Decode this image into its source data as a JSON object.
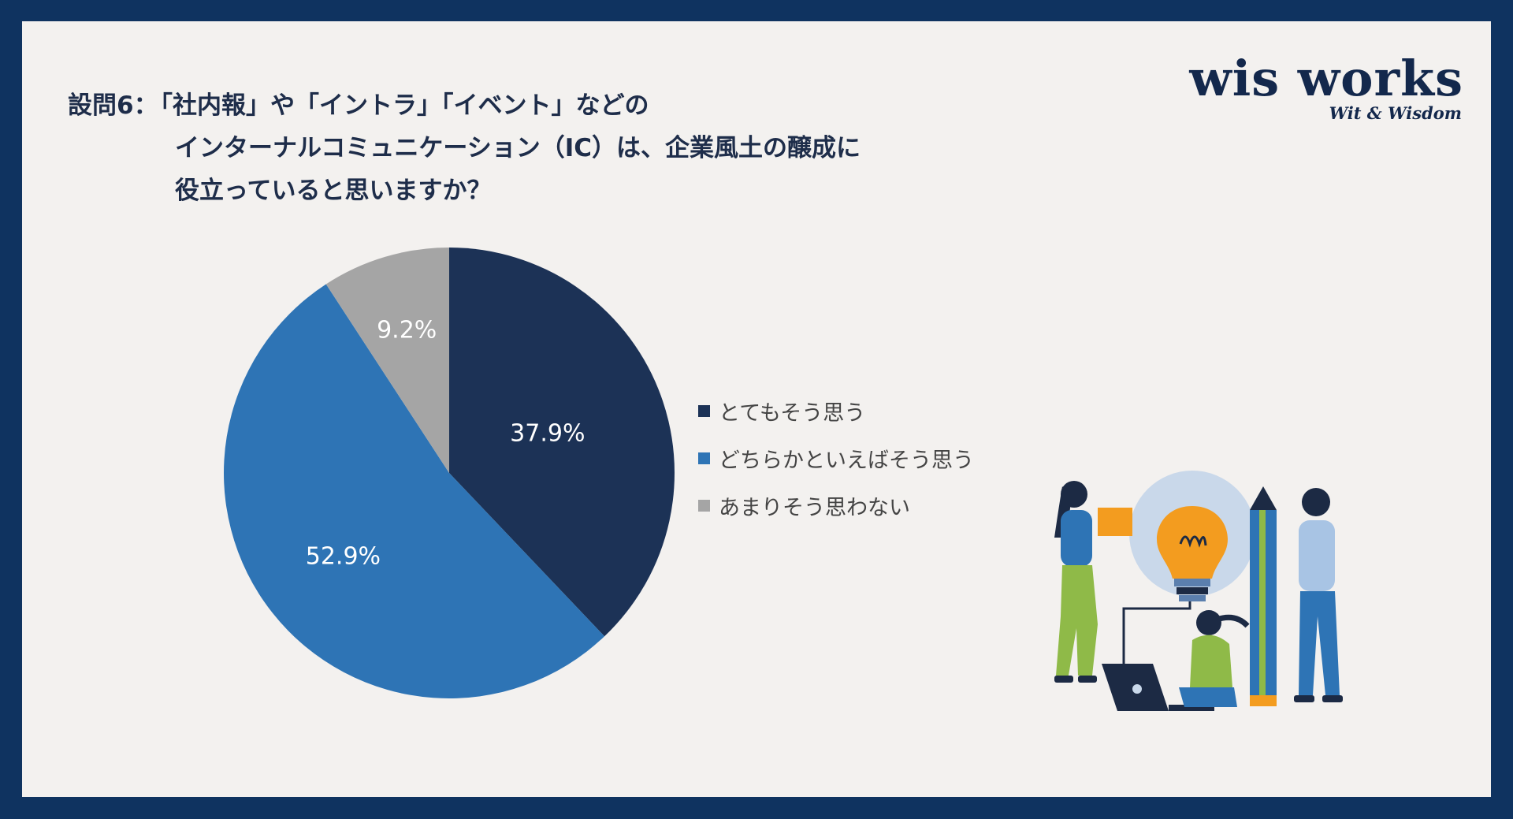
{
  "question": {
    "label": "設問6：",
    "lines": [
      "「社内報」や「イントラ」「イベント」などの",
      "インターナルコミュニケーション（IC）は、企業風土の醸成に",
      "役立っていると思いますか？"
    ]
  },
  "logo": {
    "brand": "wis works",
    "tagline": "Wit & Wisdom"
  },
  "colors": {
    "frame": "#0f3360",
    "background": "#f3f1ef",
    "title": "#1e2d4a"
  },
  "chart_data": {
    "type": "pie",
    "title": "設問6：「社内報」や「イントラ」「イベント」などのインターナルコミュニケーション（IC）は、企業風土の醸成に役立っていると思いますか？",
    "categories": [
      "とてもそう思う",
      "どちらかといえばそう思う",
      "あまりそう思わない"
    ],
    "values": [
      37.9,
      52.9,
      9.2
    ],
    "labels": [
      "37.9%",
      "52.9%",
      "9.2%"
    ],
    "colors": [
      "#1c3256",
      "#2e74b5",
      "#a5a5a5"
    ],
    "start": "12 o'clock, clockwise",
    "legend": "right"
  },
  "legend": {
    "items": [
      {
        "label": "とてもそう思う",
        "color": "#1c3256"
      },
      {
        "label": "どちらかといえばそう思う",
        "color": "#2e74b5"
      },
      {
        "label": "あまりそう思わない",
        "color": "#a5a5a5"
      }
    ]
  },
  "illustration": {
    "icon": "team-idea-illustration-icon"
  }
}
